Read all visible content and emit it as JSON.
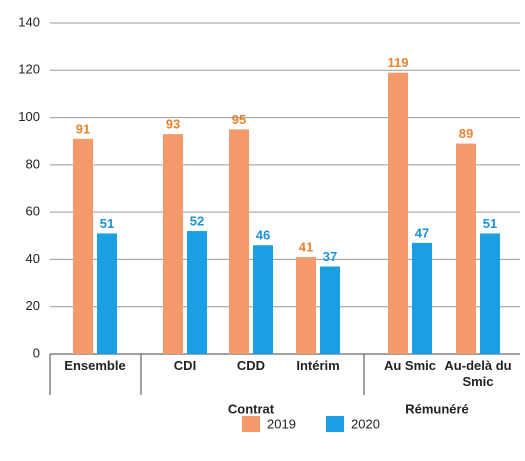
{
  "chart_data": {
    "type": "bar",
    "categories": [
      "Ensemble",
      "CDI",
      "CDD",
      "Intérim",
      "Au Smic",
      "Au-delà du Smic"
    ],
    "group_labels": [
      "Contrat",
      "Rémunéré"
    ],
    "series": [
      {
        "name": "2019",
        "color": "#f4996a",
        "label_color": "#e8832e",
        "values": [
          91,
          93,
          95,
          41,
          119,
          89
        ]
      },
      {
        "name": "2020",
        "color": "#1aa0e2",
        "label_color": "#1a92d8",
        "values": [
          51,
          52,
          46,
          37,
          47,
          51
        ]
      }
    ],
    "ylim": [
      0,
      140
    ],
    "yticks": [
      0,
      20,
      40,
      60,
      80,
      100,
      120,
      140
    ],
    "grid": true,
    "legend": "bottom"
  }
}
